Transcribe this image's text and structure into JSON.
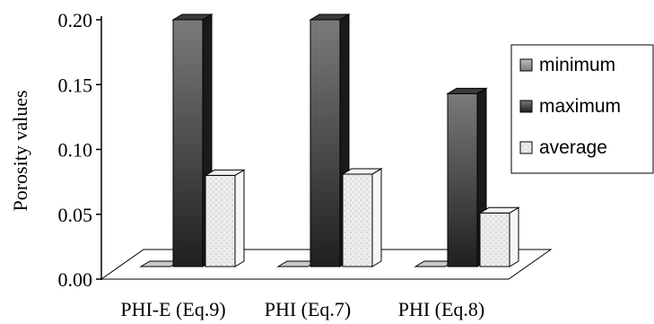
{
  "chart_data": {
    "type": "bar",
    "title": "",
    "xlabel": "",
    "ylabel": "Porosity values",
    "ylim": [
      0,
      0.2
    ],
    "yticks": [
      "0.00",
      "0.05",
      "0.10",
      "0.15",
      "0.20"
    ],
    "categories": [
      "PHI-E (Eq.9)",
      "PHI (Eq.7)",
      "PHI (Eq.8)"
    ],
    "series": [
      {
        "name": "minimum",
        "values": [
          0.0,
          0.0,
          0.0
        ],
        "color": "#9a9a9a"
      },
      {
        "name": "maximum",
        "values": [
          0.2,
          0.2,
          0.143
        ],
        "color": "#2f2f2f"
      },
      {
        "name": "average",
        "values": [
          0.08,
          0.081,
          0.051
        ],
        "color": "#e6e6e6"
      }
    ],
    "legend": "right",
    "grid": false,
    "three_d": true
  }
}
